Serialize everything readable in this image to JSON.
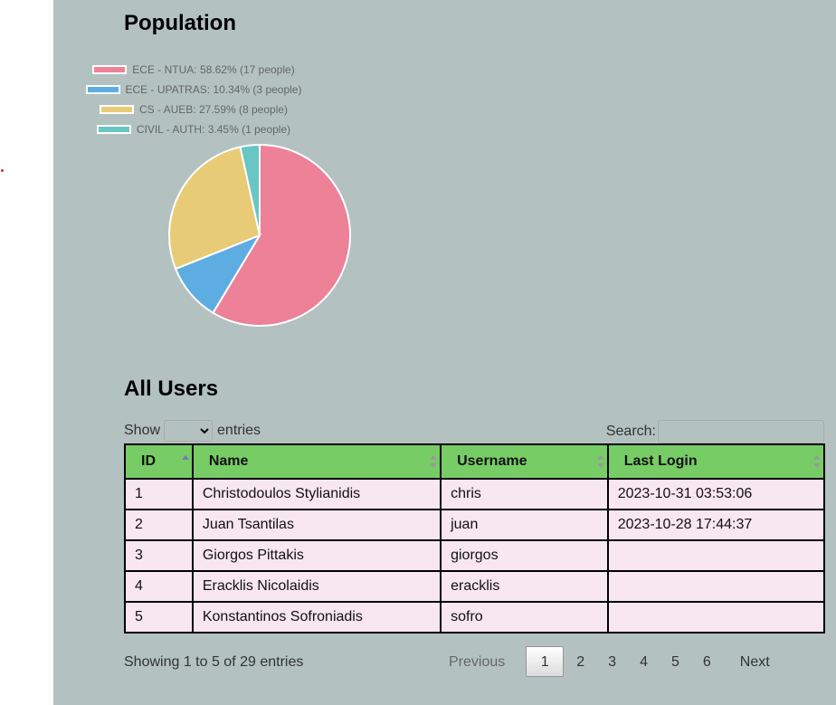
{
  "population": {
    "title": "Population",
    "legend": [
      {
        "label": "ECE - NTUA: 58.62% (17 people)",
        "color": "#ec8198"
      },
      {
        "label": "ECE - UPATRAS: 10.34% (3 people)",
        "color": "#5dade2"
      },
      {
        "label": "CS - AUEB: 27.59% (8 people)",
        "color": "#e8cb76"
      },
      {
        "label": "CIVIL - AUTH: 3.45% (1 people)",
        "color": "#6ac5c5"
      }
    ]
  },
  "chart_data": {
    "type": "pie",
    "categories": [
      "ECE - NTUA",
      "ECE - UPATRAS",
      "CS - AUEB",
      "CIVIL - AUTH"
    ],
    "values": [
      17,
      3,
      8,
      1
    ],
    "colors": [
      "#ec8198",
      "#5dade2",
      "#e8cb76",
      "#6ac5c5"
    ],
    "legend": "top"
  },
  "users": {
    "title": "All Users",
    "show_label": "Show",
    "entries_label": "entries",
    "search_label": "Search:",
    "search_value": "",
    "page_length_value": "",
    "columns": [
      "ID",
      "Name",
      "Username",
      "Last Login"
    ],
    "rows": [
      {
        "id": "1",
        "name": "Christodoulos Stylianidis",
        "username": "chris",
        "last_login": "2023-10-31 03:53:06"
      },
      {
        "id": "2",
        "name": "Juan Tsantilas",
        "username": "juan",
        "last_login": "2023-10-28 17:44:37"
      },
      {
        "id": "3",
        "name": "Giorgos Pittakis",
        "username": "giorgos",
        "last_login": ""
      },
      {
        "id": "4",
        "name": "Eracklis Nicolaidis",
        "username": "eracklis",
        "last_login": ""
      },
      {
        "id": "5",
        "name": "Konstantinos Sofroniadis",
        "username": "sofro",
        "last_login": ""
      }
    ],
    "info": "Showing 1 to 5 of 29 entries",
    "pagination": {
      "previous": "Previous",
      "next": "Next",
      "pages": [
        "1",
        "2",
        "3",
        "4",
        "5",
        "6"
      ],
      "current": "1"
    }
  }
}
